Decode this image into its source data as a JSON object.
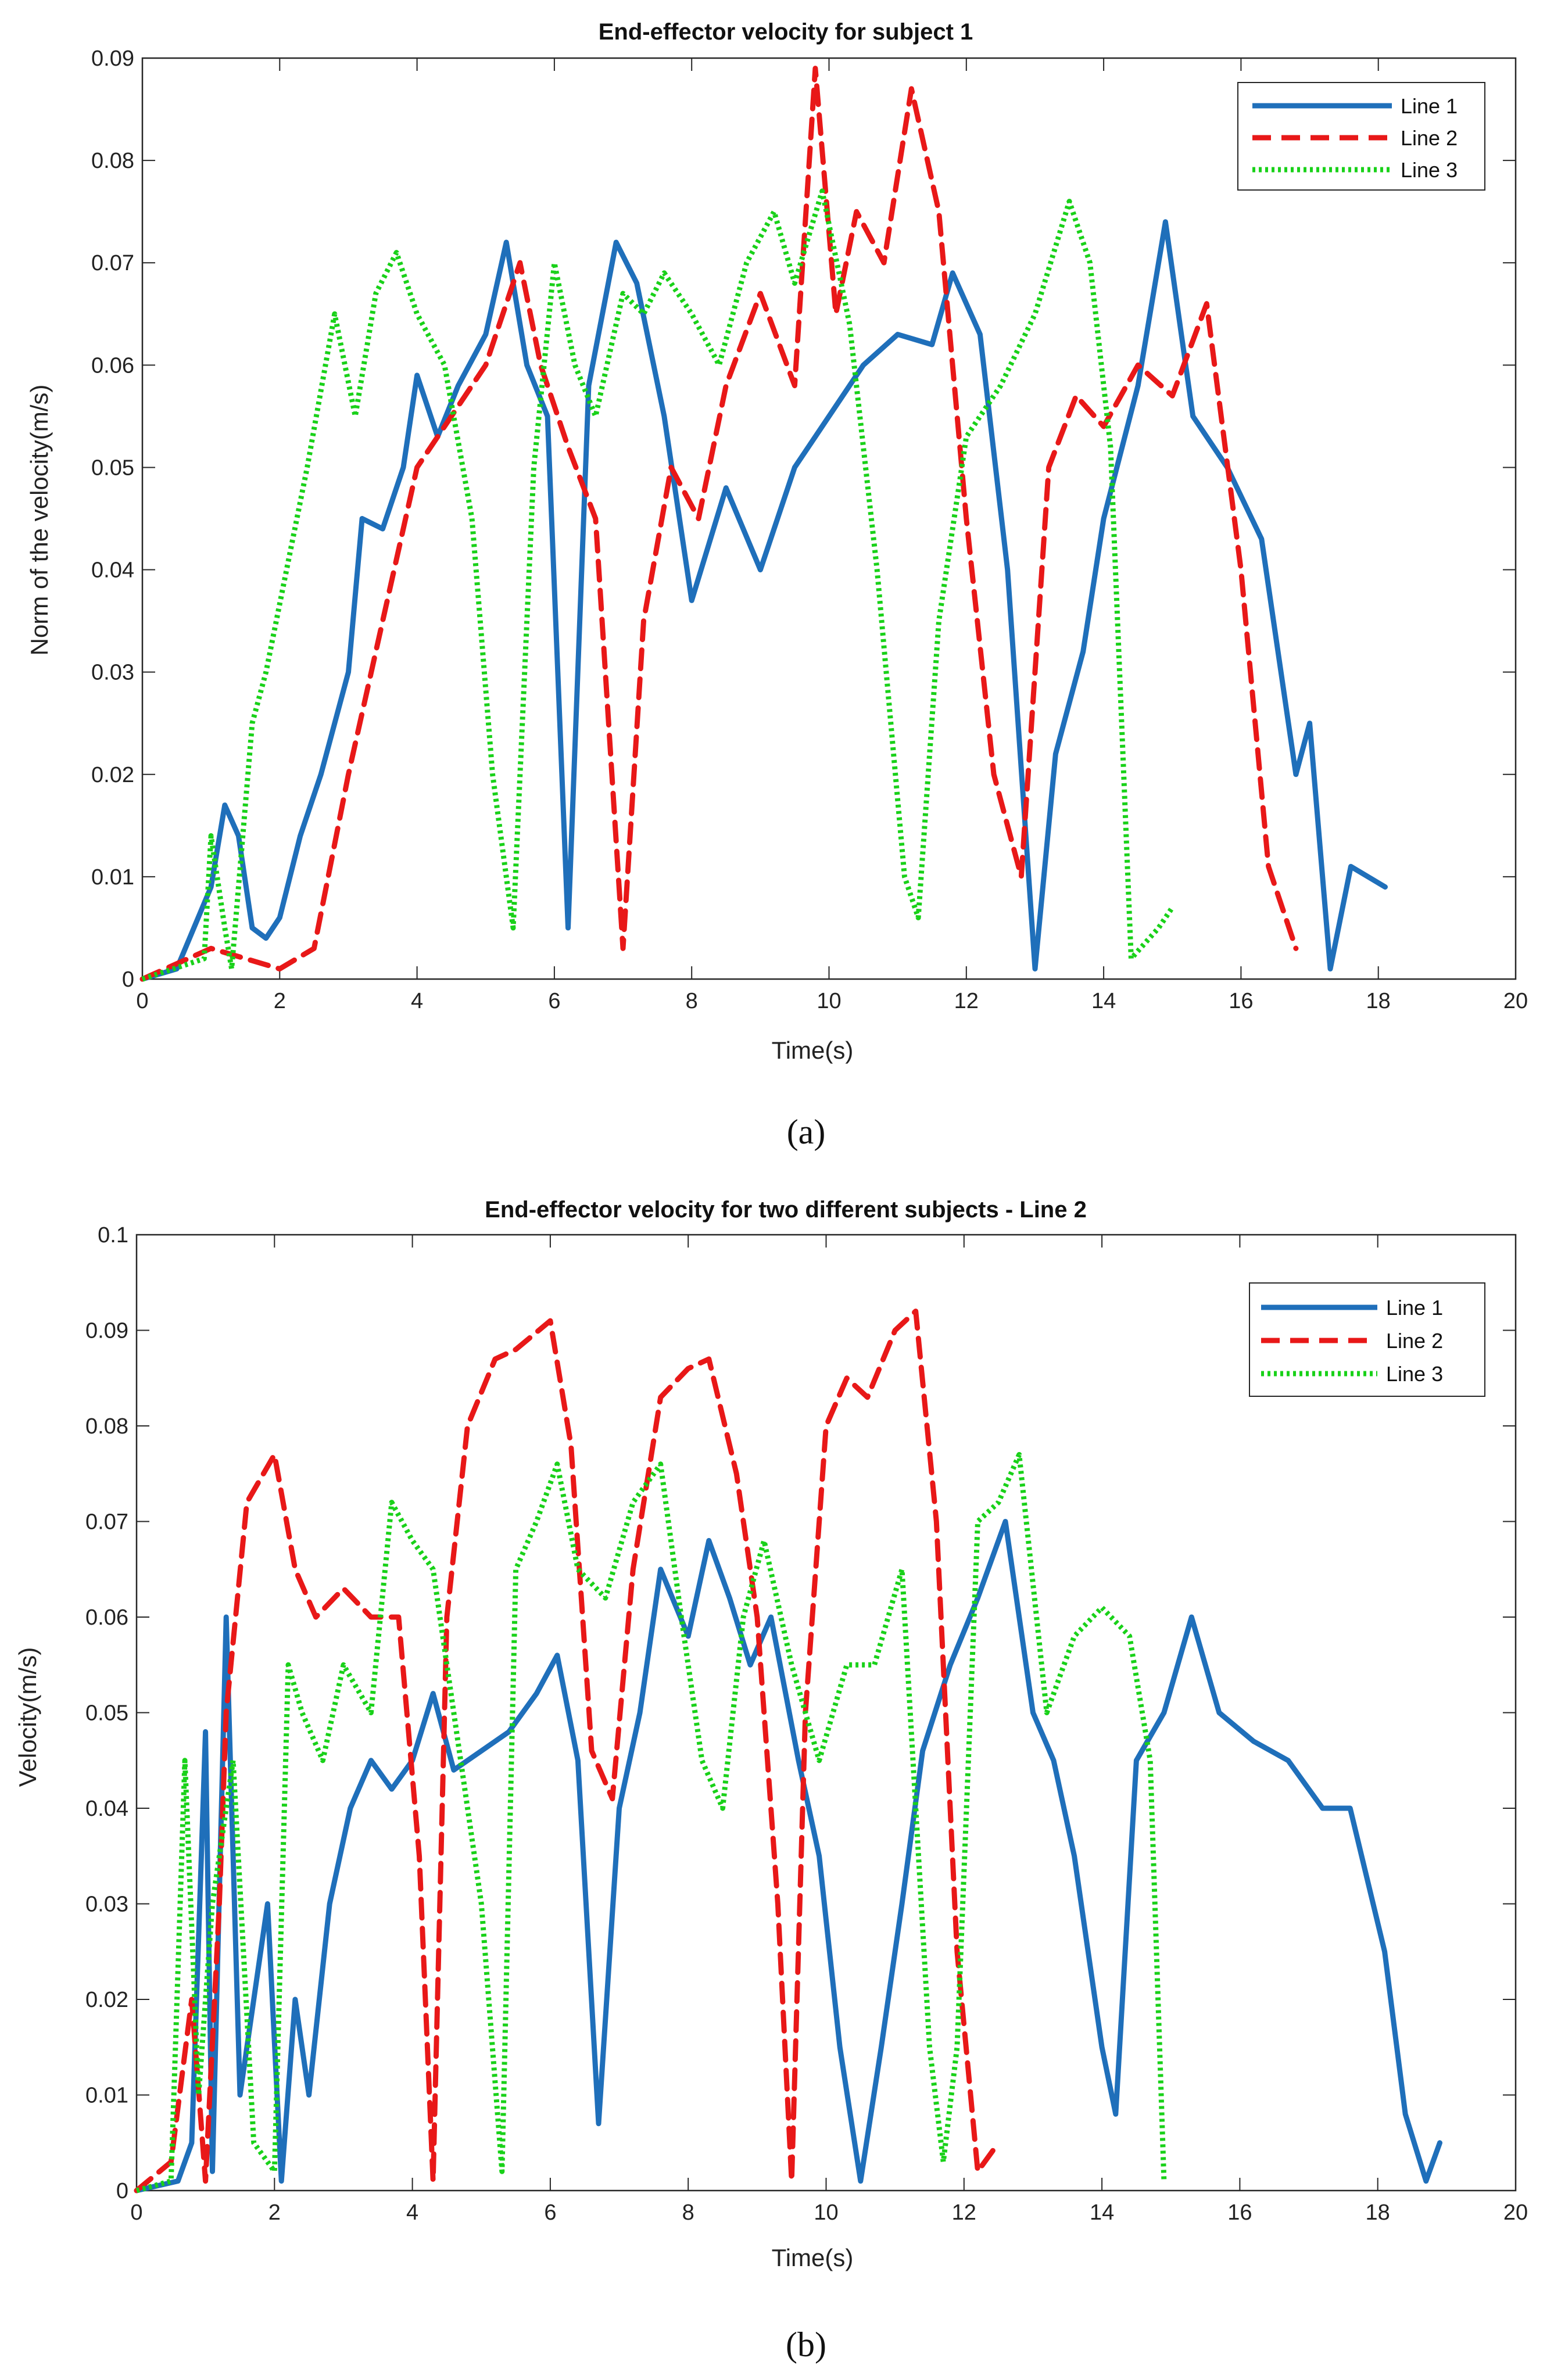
{
  "chart_data": [
    {
      "id": "a",
      "type": "line",
      "title": "End-effector velocity for subject 1",
      "xlabel": "Time(s)",
      "ylabel": "Norm of the velocity(m/s)",
      "xlim": [
        0,
        20
      ],
      "ylim": [
        0,
        0.09
      ],
      "xticks": [
        0,
        2,
        4,
        6,
        8,
        10,
        12,
        14,
        16,
        18,
        20
      ],
      "yticks": [
        0,
        0.01,
        0.02,
        0.03,
        0.04,
        0.05,
        0.06,
        0.07,
        0.08,
        0.09
      ],
      "ytick_labels": [
        "0",
        "0.01",
        "0.02",
        "0.03",
        "0.04",
        "0.05",
        "0.06",
        "0.07",
        "0.08",
        "0.09"
      ],
      "caption": "(a)",
      "legend_position": "top-right",
      "series": [
        {
          "name": "Line 1",
          "color": "#1f6fba",
          "style": "solid",
          "x": [
            0,
            0.5,
            1.0,
            1.2,
            1.4,
            1.6,
            1.8,
            2.0,
            2.3,
            2.6,
            3.0,
            3.2,
            3.5,
            3.8,
            4.0,
            4.3,
            4.6,
            5.0,
            5.3,
            5.6,
            5.9,
            6.2,
            6.5,
            6.9,
            7.2,
            7.6,
            8.0,
            8.5,
            9.0,
            9.5,
            10.0,
            10.5,
            11.0,
            11.5,
            11.8,
            12.2,
            12.6,
            13.0,
            13.3,
            13.7,
            14.0,
            14.5,
            14.9,
            15.3,
            15.8,
            16.3,
            16.8,
            17.0,
            17.3,
            17.6,
            18.1
          ],
          "y": [
            0,
            0.001,
            0.009,
            0.017,
            0.014,
            0.005,
            0.004,
            0.006,
            0.014,
            0.02,
            0.03,
            0.045,
            0.044,
            0.05,
            0.059,
            0.053,
            0.058,
            0.063,
            0.072,
            0.06,
            0.055,
            0.005,
            0.058,
            0.072,
            0.068,
            0.055,
            0.037,
            0.048,
            0.04,
            0.05,
            0.055,
            0.06,
            0.063,
            0.062,
            0.069,
            0.063,
            0.04,
            0.001,
            0.022,
            0.032,
            0.045,
            0.058,
            0.074,
            0.055,
            0.05,
            0.043,
            0.02,
            0.025,
            0.001,
            0.011,
            0.009
          ]
        },
        {
          "name": "Line 2",
          "color": "#e81818",
          "style": "dashed",
          "x": [
            0,
            1.0,
            1.5,
            2.0,
            2.5,
            3.0,
            3.5,
            4.0,
            4.5,
            5.0,
            5.5,
            5.8,
            6.2,
            6.6,
            7.0,
            7.3,
            7.7,
            8.1,
            8.5,
            9.0,
            9.5,
            9.8,
            10.1,
            10.4,
            10.8,
            11.2,
            11.6,
            12.0,
            12.4,
            12.8,
            13.2,
            13.6,
            14.0,
            14.5,
            15.0,
            15.5,
            16.0,
            16.4,
            16.8
          ],
          "y": [
            0,
            0.003,
            0.002,
            0.001,
            0.003,
            0.02,
            0.035,
            0.05,
            0.055,
            0.06,
            0.07,
            0.06,
            0.052,
            0.045,
            0.003,
            0.035,
            0.05,
            0.045,
            0.058,
            0.067,
            0.058,
            0.089,
            0.065,
            0.075,
            0.07,
            0.087,
            0.075,
            0.045,
            0.02,
            0.01,
            0.05,
            0.057,
            0.054,
            0.06,
            0.057,
            0.066,
            0.04,
            0.011,
            0.003
          ]
        },
        {
          "name": "Line 3",
          "color": "#19d119",
          "style": "dotted",
          "x": [
            0,
            0.9,
            1.0,
            1.2,
            1.3,
            1.6,
            1.8,
            2.1,
            2.4,
            2.8,
            3.1,
            3.4,
            3.7,
            4.0,
            4.4,
            4.8,
            5.1,
            5.4,
            5.7,
            6.0,
            6.3,
            6.6,
            7.0,
            7.3,
            7.6,
            8.0,
            8.4,
            8.8,
            9.2,
            9.5,
            9.9,
            10.3,
            10.7,
            11.1,
            11.3,
            11.6,
            12.0,
            12.5,
            13.0,
            13.5,
            13.8,
            14.1,
            14.4,
            14.8,
            15.0
          ],
          "y": [
            0,
            0.002,
            0.014,
            0.005,
            0.001,
            0.025,
            0.03,
            0.04,
            0.05,
            0.065,
            0.055,
            0.067,
            0.071,
            0.065,
            0.06,
            0.045,
            0.02,
            0.005,
            0.05,
            0.07,
            0.06,
            0.055,
            0.067,
            0.065,
            0.069,
            0.065,
            0.06,
            0.07,
            0.075,
            0.068,
            0.077,
            0.064,
            0.04,
            0.01,
            0.006,
            0.035,
            0.053,
            0.058,
            0.065,
            0.076,
            0.07,
            0.052,
            0.002,
            0.005,
            0.007
          ]
        }
      ]
    },
    {
      "id": "b",
      "type": "line",
      "title": "End-effector velocity for two different subjects - Line 2",
      "xlabel": "Time(s)",
      "ylabel": "Velocity(m/s)",
      "xlim": [
        0,
        20
      ],
      "ylim": [
        0,
        0.1
      ],
      "xticks": [
        0,
        2,
        4,
        6,
        8,
        10,
        12,
        14,
        16,
        18,
        20
      ],
      "yticks": [
        0,
        0.01,
        0.02,
        0.03,
        0.04,
        0.05,
        0.06,
        0.07,
        0.08,
        0.09,
        0.1
      ],
      "ytick_labels": [
        "0",
        "0.01",
        "0.02",
        "0.03",
        "0.04",
        "0.05",
        "0.06",
        "0.07",
        "0.08",
        "0.09",
        "0.1"
      ],
      "caption": "(b)",
      "legend_position": "top-right",
      "series": [
        {
          "name": "Line 1",
          "color": "#1f6fba",
          "style": "solid",
          "x": [
            0,
            0.6,
            0.8,
            1.0,
            1.1,
            1.3,
            1.5,
            1.7,
            1.9,
            2.1,
            2.3,
            2.5,
            2.8,
            3.1,
            3.4,
            3.7,
            4.0,
            4.3,
            4.6,
            5.0,
            5.4,
            5.8,
            6.1,
            6.4,
            6.7,
            7.0,
            7.3,
            7.6,
            8.0,
            8.3,
            8.6,
            8.9,
            9.2,
            9.6,
            9.9,
            10.2,
            10.5,
            10.8,
            11.1,
            11.4,
            11.8,
            12.2,
            12.6,
            13.0,
            13.3,
            13.6,
            14.0,
            14.2,
            14.5,
            14.9,
            15.3,
            15.7,
            16.2,
            16.7,
            17.2,
            17.6,
            18.1,
            18.4,
            18.7,
            18.9
          ],
          "y": [
            0,
            0.001,
            0.005,
            0.048,
            0.002,
            0.06,
            0.01,
            0.02,
            0.03,
            0.001,
            0.02,
            0.01,
            0.03,
            0.04,
            0.045,
            0.042,
            0.045,
            0.052,
            0.044,
            0.046,
            0.048,
            0.052,
            0.056,
            0.045,
            0.007,
            0.04,
            0.05,
            0.065,
            0.058,
            0.068,
            0.062,
            0.055,
            0.06,
            0.045,
            0.035,
            0.015,
            0.001,
            0.015,
            0.03,
            0.046,
            0.055,
            0.062,
            0.07,
            0.05,
            0.045,
            0.035,
            0.015,
            0.008,
            0.045,
            0.05,
            0.06,
            0.05,
            0.047,
            0.045,
            0.04,
            0.04,
            0.025,
            0.008,
            0.001,
            0.005
          ]
        },
        {
          "name": "Line 2",
          "color": "#e81818",
          "style": "dashed",
          "x": [
            0,
            0.5,
            0.8,
            1.0,
            1.2,
            1.3,
            1.6,
            2.0,
            2.3,
            2.6,
            3.0,
            3.4,
            3.8,
            4.1,
            4.3,
            4.5,
            4.8,
            5.2,
            5.5,
            6.0,
            6.3,
            6.6,
            6.9,
            7.2,
            7.6,
            8.0,
            8.3,
            8.7,
            9.0,
            9.3,
            9.5,
            9.7,
            10.0,
            10.3,
            10.6,
            11.0,
            11.3,
            11.6,
            11.9,
            12.2,
            12.5
          ],
          "y": [
            0,
            0.003,
            0.02,
            0.001,
            0.03,
            0.05,
            0.072,
            0.077,
            0.065,
            0.06,
            0.063,
            0.06,
            0.06,
            0.035,
            0.001,
            0.06,
            0.08,
            0.087,
            0.088,
            0.091,
            0.078,
            0.046,
            0.041,
            0.065,
            0.083,
            0.086,
            0.087,
            0.075,
            0.06,
            0.03,
            0.001,
            0.05,
            0.08,
            0.085,
            0.083,
            0.09,
            0.092,
            0.07,
            0.025,
            0.002,
            0.005
          ]
        },
        {
          "name": "Line 3",
          "color": "#19d119",
          "style": "dotted",
          "x": [
            0,
            0.5,
            0.7,
            0.9,
            1.1,
            1.4,
            1.7,
            2.0,
            2.2,
            2.4,
            2.7,
            3.0,
            3.4,
            3.7,
            4.0,
            4.3,
            4.7,
            5.0,
            5.3,
            5.5,
            5.8,
            6.1,
            6.4,
            6.8,
            7.2,
            7.6,
            7.9,
            8.2,
            8.5,
            8.8,
            9.1,
            9.5,
            9.9,
            10.3,
            10.7,
            11.1,
            11.5,
            11.7,
            11.9,
            12.2,
            12.5,
            12.8,
            13.2,
            13.6,
            14.0,
            14.4,
            14.7,
            14.9
          ],
          "y": [
            0,
            0.001,
            0.045,
            0.01,
            0.03,
            0.045,
            0.005,
            0.002,
            0.055,
            0.05,
            0.045,
            0.055,
            0.05,
            0.072,
            0.068,
            0.065,
            0.045,
            0.03,
            0.002,
            0.065,
            0.07,
            0.076,
            0.065,
            0.062,
            0.072,
            0.076,
            0.06,
            0.045,
            0.04,
            0.06,
            0.068,
            0.055,
            0.045,
            0.055,
            0.055,
            0.065,
            0.015,
            0.003,
            0.015,
            0.07,
            0.072,
            0.077,
            0.05,
            0.058,
            0.061,
            0.058,
            0.045,
            0.001
          ]
        }
      ]
    }
  ]
}
